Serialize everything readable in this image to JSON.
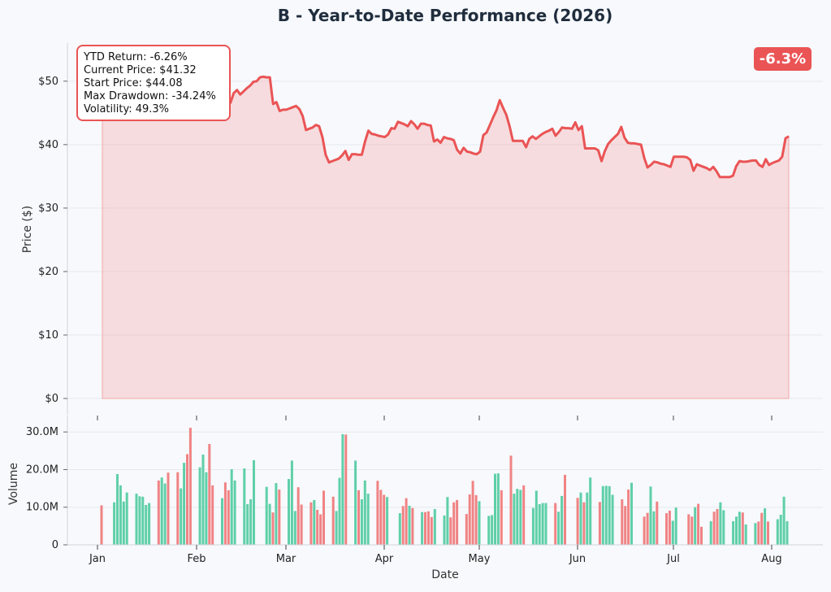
{
  "chart_data": [
    {
      "type": "area",
      "title": "B - Year-to-Date Performance (2026)",
      "ylabel": "Price ($)",
      "xlabel": "",
      "ylim": [
        0,
        56
      ],
      "yticks": [
        0,
        10,
        20,
        30,
        40,
        50
      ],
      "ytick_labels": [
        "$0",
        "$10",
        "$20",
        "$30",
        "$40",
        "$50"
      ],
      "line_color": "#ea5455",
      "fill_color": "#f4a6a6",
      "badge": {
        "text": "-6.3%",
        "color": "#ea5455",
        "position": "top-right"
      },
      "stats_box": {
        "position": "top-left",
        "lines": [
          "YTD Return: -6.26%",
          "Current Price: $41.32",
          "Start Price: $44.08",
          "Max Drawdown: -34.24%",
          "Volatility: 49.3%"
        ]
      },
      "grid": true,
      "series": [
        {
          "values": [
            44.08,
            45.2,
            46.3,
            47.0,
            47.4,
            48.0,
            48.2,
            48.5,
            48.8,
            49.0,
            49.3,
            49.5,
            49.8,
            50.0,
            50.2,
            50.5,
            50.3,
            50.1,
            50.4,
            50.6,
            49.6,
            47.4,
            46.3,
            45.7,
            46.1,
            46.3,
            46.1,
            43.9,
            44.6,
            45.3,
            45.5,
            46.0,
            46.5,
            46.3,
            45.3,
            47.9,
            47.6,
            47.2,
            46.9,
            46.6,
            48.1,
            48.6,
            47.9,
            48.4,
            48.9,
            49.3,
            49.9,
            50.0,
            50.6,
            50.7,
            50.6,
            50.6,
            46.4,
            46.7,
            45.3,
            45.5,
            45.5,
            45.7,
            45.9,
            46.1,
            45.6,
            44.5,
            42.3,
            42.5,
            42.7,
            43.1,
            42.9,
            41.2,
            38.4,
            37.2,
            37.4,
            37.6,
            37.8,
            38.3,
            39.0,
            37.6,
            38.5,
            38.5,
            38.4,
            38.4,
            40.5,
            42.2,
            41.7,
            41.6,
            41.4,
            41.3,
            41.2,
            41.6,
            42.6,
            42.5,
            43.6,
            43.4,
            43.2,
            42.9,
            43.7,
            43.2,
            42.5,
            43.3,
            43.3,
            43.1,
            43.0,
            40.5,
            40.8,
            40.3,
            41.2,
            41.0,
            40.9,
            40.7,
            39.2,
            38.6,
            39.5,
            38.9,
            38.8,
            38.6,
            38.5,
            38.9,
            41.5,
            41.9,
            43.1,
            44.3,
            45.4,
            47.0,
            45.8,
            44.7,
            42.9,
            40.6,
            40.6,
            40.6,
            40.6,
            39.6,
            40.9,
            41.3,
            40.9,
            41.3,
            41.7,
            42.0,
            42.2,
            42.5,
            41.4,
            42.0,
            42.7,
            42.6,
            42.6,
            42.5,
            43.5,
            42.3,
            42.9,
            39.4,
            39.4,
            39.4,
            39.4,
            39.1,
            37.4,
            39.0,
            40.1,
            40.7,
            41.2,
            41.7,
            42.8,
            41.1,
            40.3,
            40.2,
            40.2,
            40.1,
            40.0,
            37.9,
            36.4,
            36.8,
            37.3,
            37.2,
            37.0,
            36.9,
            36.7,
            36.5,
            38.1,
            38.1,
            38.1,
            38.1,
            38.0,
            37.6,
            35.9,
            36.9,
            36.7,
            36.5,
            36.3,
            36.0,
            36.5,
            35.8,
            34.9,
            34.9,
            34.9,
            34.9,
            35.1,
            36.6,
            37.4,
            37.3,
            37.3,
            37.4,
            37.5,
            37.5,
            36.8,
            36.5,
            37.7,
            36.8,
            37.1,
            37.3,
            37.5,
            38.1,
            41.0,
            41.32
          ]
        }
      ]
    },
    {
      "type": "bar",
      "ylabel": "Volume",
      "xlabel": "Date",
      "ylim": [
        0,
        33.5
      ],
      "yticks": [
        0,
        10,
        20,
        30
      ],
      "ytick_labels": [
        "0",
        "10.0M",
        "20.0M",
        "30.0M"
      ],
      "up_color": "#5fcfa8",
      "down_color": "#f08384",
      "grid": true,
      "x_ticks": [
        "Jan",
        "Feb",
        "Mar",
        "Apr",
        "May",
        "Jun",
        "Jul",
        "Aug"
      ],
      "series": [
        {
          "name": "Volume (M)",
          "values": [
            10.5,
            0,
            0,
            0,
            11.3,
            18.8,
            15.8,
            11.5,
            13.9,
            0,
            0,
            13.6,
            12.9,
            12.8,
            10.6,
            11.1,
            0,
            0,
            17.1,
            17.9,
            16.3,
            19.2,
            0,
            0,
            19.3,
            15.0,
            21.8,
            24.1,
            31.1,
            0,
            0,
            20.6,
            24.0,
            19.3,
            26.8,
            15.8,
            0,
            0,
            12.4,
            16.6,
            14.5,
            20.1,
            17.1,
            0,
            0,
            20.3,
            10.8,
            12.1,
            22.5,
            0,
            0,
            0,
            15.4,
            10.9,
            8.6,
            16.4,
            14.7,
            0,
            0,
            17.5,
            22.4,
            9.0,
            15.3,
            10.7,
            0,
            0,
            11.3,
            11.9,
            9.3,
            8.1,
            14.4,
            0,
            0,
            12.8,
            9.0,
            17.8,
            29.4,
            29.3,
            0,
            0,
            22.4,
            14.5,
            12.1,
            17.1,
            13.6,
            0,
            0,
            17.0,
            14.6,
            13.3,
            12.7,
            0,
            0,
            0,
            8.4,
            10.3,
            12.4,
            10.4,
            9.8,
            0,
            0,
            8.7,
            8.7,
            8.9,
            7.4,
            9.5,
            0,
            0,
            7.8,
            12.7,
            7.3,
            11.3,
            11.9,
            0,
            0,
            8.2,
            13.4,
            17.0,
            13.2,
            11.6,
            0,
            0,
            7.7,
            7.9,
            18.9,
            19.0,
            14.5,
            0,
            0,
            23.7,
            13.6,
            14.9,
            14.6,
            15.8,
            0,
            0,
            9.8,
            14.4,
            10.8,
            11.1,
            11.1,
            0,
            0,
            11.1,
            8.8,
            13.0,
            18.6,
            0,
            0,
            0,
            12.5,
            13.9,
            11.3,
            13.9,
            17.9,
            0,
            0,
            11.4,
            15.6,
            15.7,
            15.6,
            13.3,
            0,
            0,
            12.1,
            10.3,
            14.7,
            16.5,
            0,
            0,
            0,
            7.5,
            8.5,
            15.5,
            8.9,
            11.5,
            0,
            0,
            8.4,
            9.1,
            6.4,
            9.9,
            0,
            0,
            0,
            8.1,
            7.5,
            10.0,
            10.9,
            4.8,
            0,
            0,
            6.3,
            8.8,
            9.5,
            11.3,
            9.2,
            0,
            0,
            6.3,
            7.5,
            8.8,
            8.6,
            5.4,
            0,
            0,
            5.8,
            6.2,
            8.5,
            9.7,
            6.2,
            0,
            0,
            6.8,
            8.0,
            12.8,
            6.3
          ]
        }
      ]
    }
  ]
}
